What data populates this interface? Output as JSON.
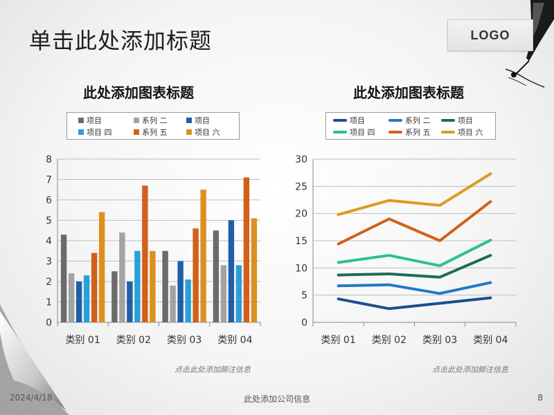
{
  "slide": {
    "title": "单击此处添加标题",
    "logo_text": "LOGO",
    "footer_date": "2024/4/18",
    "footer_center": "此处添加公司信息",
    "footer_page": "8",
    "art": [
      "pen-nib-icon",
      "page-curl-icon"
    ]
  },
  "chart_data": [
    {
      "type": "bar",
      "title": "此处添加图表标题",
      "footnote": "点击此处添加脚注信息",
      "categories": [
        "类别 01",
        "类别 02",
        "类别 03",
        "类别 04"
      ],
      "ylim": [
        0,
        8
      ],
      "yticks": [
        "0",
        "1",
        "2",
        "3",
        "4",
        "5",
        "6",
        "7",
        "8"
      ],
      "legend_position": "top",
      "grid": true,
      "series": [
        {
          "name": "项目",
          "color": "#6b6b6b",
          "values": [
            4.3,
            2.5,
            3.5,
            4.5
          ]
        },
        {
          "name": "系列 二",
          "color": "#a3a3a3",
          "values": [
            2.4,
            4.4,
            1.8,
            2.8
          ]
        },
        {
          "name": "项目",
          "color": "#1f5fa8",
          "values": [
            2.0,
            2.0,
            3.0,
            5.0
          ]
        },
        {
          "name": "项目 四",
          "color": "#2aa0d8",
          "values": [
            2.3,
            3.5,
            2.1,
            2.8
          ]
        },
        {
          "name": "系列 五",
          "color": "#d2601a",
          "values": [
            3.4,
            6.7,
            4.6,
            7.1
          ]
        },
        {
          "name": "项目 六",
          "color": "#dd9020",
          "values": [
            5.4,
            3.5,
            6.5,
            5.1
          ]
        }
      ]
    },
    {
      "type": "line",
      "title": "此处添加图表标题",
      "footnote": "点击此处添加脚注信息",
      "categories": [
        "类别 01",
        "类别 02",
        "类别 03",
        "类别 04"
      ],
      "ylim": [
        0,
        30
      ],
      "yticks": [
        "0",
        "5",
        "10",
        "15",
        "20",
        "25",
        "30"
      ],
      "legend_position": "top",
      "grid": true,
      "series": [
        {
          "name": "项目",
          "color": "#1b4f8a",
          "values": [
            4.3,
            2.5,
            3.5,
            4.5
          ]
        },
        {
          "name": "系列 二",
          "color": "#2278c7",
          "values": [
            6.7,
            6.9,
            5.3,
            7.3
          ]
        },
        {
          "name": "项目",
          "color": "#1b6b5a",
          "values": [
            8.7,
            8.9,
            8.3,
            12.3
          ]
        },
        {
          "name": "项目 四",
          "color": "#2cc08a",
          "values": [
            11.0,
            12.3,
            10.4,
            15.1
          ]
        },
        {
          "name": "系列 五",
          "color": "#d2601a",
          "values": [
            14.4,
            19.0,
            15.0,
            22.2
          ]
        },
        {
          "name": "项目 六",
          "color": "#dd9a20",
          "values": [
            19.8,
            22.4,
            21.5,
            27.3
          ]
        }
      ]
    }
  ]
}
